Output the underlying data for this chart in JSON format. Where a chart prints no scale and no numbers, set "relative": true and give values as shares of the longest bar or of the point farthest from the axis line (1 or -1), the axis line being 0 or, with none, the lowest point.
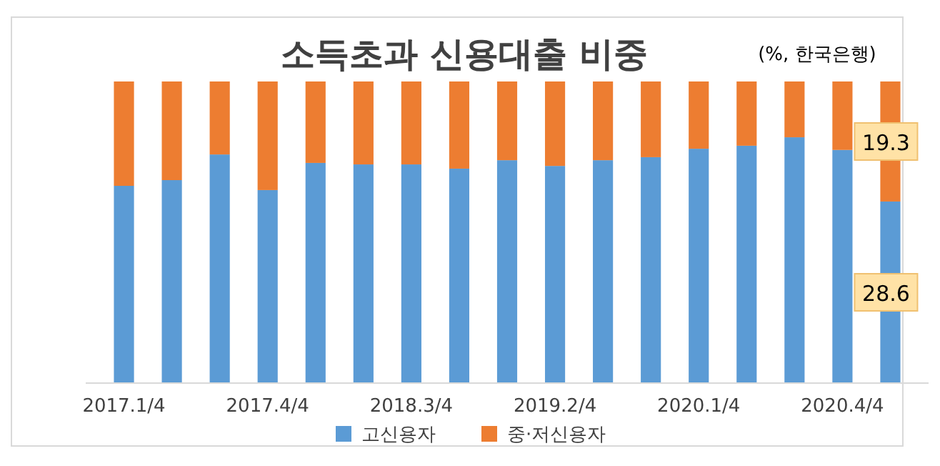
{
  "chart_data": {
    "type": "bar",
    "title": "소득초과 신용대출 비중",
    "subtitle": "(%, 한국은행)",
    "relative": true,
    "stacked": true,
    "legend": "bottom",
    "categories": [
      "2017.1/4",
      null,
      null,
      "2017.4/4",
      null,
      null,
      "2018.3/4",
      null,
      null,
      "2019.2/4",
      null,
      null,
      "2020.1/4",
      null,
      null,
      "2020.4/4",
      null
    ],
    "series": [
      {
        "name": "고신용자",
        "color": "#5b9bd5",
        "values": [
          0.654,
          0.673,
          0.758,
          0.64,
          0.73,
          0.725,
          0.725,
          0.711,
          0.739,
          0.72,
          0.739,
          0.749,
          0.777,
          0.787,
          0.815,
          0.773,
          0.602
        ]
      },
      {
        "name": "중·저신용자",
        "color": "#ed7d31",
        "values": [
          0.346,
          0.327,
          0.242,
          0.36,
          0.27,
          0.275,
          0.275,
          0.289,
          0.261,
          0.28,
          0.261,
          0.251,
          0.223,
          0.213,
          0.185,
          0.227,
          0.398
        ]
      }
    ],
    "annotations": [
      "28.6",
      "19.3"
    ]
  }
}
